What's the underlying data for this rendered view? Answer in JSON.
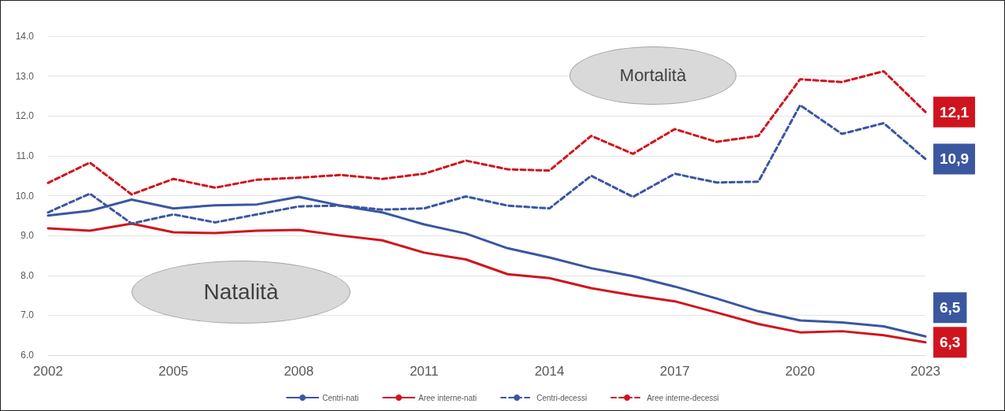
{
  "chart_data": {
    "type": "line",
    "x": [
      2002,
      2003,
      2004,
      2005,
      2006,
      2007,
      2008,
      2009,
      2010,
      2011,
      2012,
      2013,
      2014,
      2015,
      2016,
      2017,
      2018,
      2019,
      2020,
      2021,
      2022,
      2023
    ],
    "xlim": [
      2002,
      2023
    ],
    "xticks": [
      2002,
      2005,
      2008,
      2011,
      2014,
      2017,
      2020,
      2023
    ],
    "ylim": [
      6,
      14
    ],
    "yticks": [
      {
        "value": 6,
        "label": "6.0"
      },
      {
        "value": 7,
        "label": "7.0"
      },
      {
        "value": 8,
        "label": "8.0"
      },
      {
        "value": 9,
        "label": "9.0"
      },
      {
        "value": 10,
        "label": "10.0"
      },
      {
        "value": 11,
        "label": "11.0"
      },
      {
        "value": 12,
        "label": "12.0"
      },
      {
        "value": 13,
        "label": "13.0"
      },
      {
        "value": 14,
        "label": "14.0"
      }
    ],
    "grid": "y",
    "legend": "bottom",
    "marker": "none",
    "annotations": [
      "Mortalità",
      "Natalità"
    ],
    "series": [
      {
        "name": "Centri-nati",
        "color": "#3a57a0",
        "line_style": "solid",
        "values": [
          9.5,
          9.62,
          9.9,
          9.68,
          9.76,
          9.78,
          9.97,
          9.75,
          9.58,
          9.28,
          9.05,
          8.68,
          8.45,
          8.18,
          7.98,
          7.72,
          7.42,
          7.1,
          6.87,
          6.82,
          6.72,
          6.47
        ],
        "value_labels": [
          null,
          null,
          null,
          null,
          null,
          null,
          null,
          null,
          null,
          null,
          null,
          null,
          null,
          null,
          null,
          null,
          null,
          null,
          null,
          null,
          null,
          "6,5"
        ]
      },
      {
        "name": "Aree interne-nati",
        "color": "#d0141e",
        "line_style": "solid",
        "values": [
          9.18,
          9.12,
          9.3,
          9.08,
          9.06,
          9.12,
          9.14,
          9.0,
          8.88,
          8.57,
          8.4,
          8.03,
          7.93,
          7.68,
          7.5,
          7.35,
          7.07,
          6.78,
          6.57,
          6.6,
          6.5,
          6.32
        ],
        "value_labels": [
          null,
          null,
          null,
          null,
          null,
          null,
          null,
          null,
          null,
          null,
          null,
          null,
          null,
          null,
          null,
          null,
          null,
          null,
          null,
          null,
          null,
          "6,3"
        ]
      },
      {
        "name": "Centri-decessi",
        "color": "#3a57a0",
        "line_style": "dashed",
        "values": [
          9.58,
          10.05,
          9.3,
          9.53,
          9.33,
          9.53,
          9.73,
          9.75,
          9.65,
          9.68,
          9.98,
          9.75,
          9.68,
          10.5,
          9.97,
          10.55,
          10.33,
          10.35,
          12.27,
          11.55,
          11.82,
          10.92
        ],
        "value_labels": [
          null,
          null,
          null,
          null,
          null,
          null,
          null,
          null,
          null,
          null,
          null,
          null,
          null,
          null,
          null,
          null,
          null,
          null,
          null,
          null,
          null,
          "10,9"
        ]
      },
      {
        "name": "Aree interne-decessi",
        "color": "#d0141e",
        "line_style": "dashed",
        "values": [
          10.32,
          10.83,
          10.03,
          10.42,
          10.2,
          10.4,
          10.45,
          10.52,
          10.42,
          10.55,
          10.88,
          10.66,
          10.63,
          11.5,
          11.05,
          11.67,
          11.35,
          11.5,
          12.92,
          12.85,
          13.12,
          12.1
        ],
        "value_labels": [
          null,
          null,
          null,
          null,
          null,
          null,
          null,
          null,
          null,
          null,
          null,
          null,
          null,
          null,
          null,
          null,
          null,
          null,
          null,
          null,
          null,
          "12,1"
        ]
      }
    ]
  }
}
